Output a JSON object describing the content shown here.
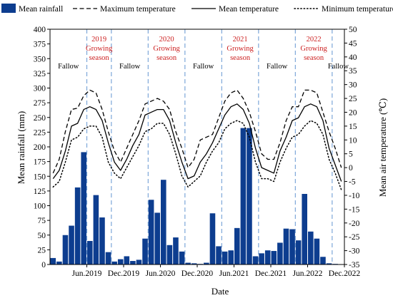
{
  "chart_data": {
    "type": "bar+line",
    "title": "",
    "xlabel": "Date",
    "ylabel_left": "Mean rainfall (mm)",
    "ylabel_right": "Mean air temperature (℃)",
    "ylim_left": [
      0,
      400
    ],
    "yticks_left": [
      0,
      25,
      50,
      75,
      100,
      125,
      150,
      175,
      200,
      225,
      250,
      275,
      300,
      325,
      350,
      375,
      400
    ],
    "ylim_right": [
      -35,
      50
    ],
    "yticks_right": [
      -35,
      -30,
      -25,
      -20,
      -15,
      -10,
      -5,
      0,
      5,
      10,
      15,
      20,
      25,
      30,
      35,
      40,
      45,
      50
    ],
    "x_tick_labels": [
      {
        "month": 6,
        "label": "Jun.2019"
      },
      {
        "month": 12,
        "label": "Dec.2019"
      },
      {
        "month": 18,
        "label": "Jun.2020"
      },
      {
        "month": 24,
        "label": "Dec.2020"
      },
      {
        "month": 30,
        "label": "Jun.2021"
      },
      {
        "month": 36,
        "label": "Dec.2021"
      },
      {
        "month": 42,
        "label": "Jun.2022"
      },
      {
        "month": 48,
        "label": "Dec.2022"
      }
    ],
    "months": [
      "2019-01",
      "2019-02",
      "2019-03",
      "2019-04",
      "2019-05",
      "2019-06",
      "2019-07",
      "2019-08",
      "2019-09",
      "2019-10",
      "2019-11",
      "2019-12",
      "2020-01",
      "2020-02",
      "2020-03",
      "2020-04",
      "2020-05",
      "2020-06",
      "2020-07",
      "2020-08",
      "2020-09",
      "2020-10",
      "2020-11",
      "2020-12",
      "2021-01",
      "2021-02",
      "2021-03",
      "2021-04",
      "2021-05",
      "2021-06",
      "2021-07",
      "2021-08",
      "2021-09",
      "2021-10",
      "2021-11",
      "2021-12",
      "2022-01",
      "2022-02",
      "2022-03",
      "2022-04",
      "2022-05",
      "2022-06",
      "2022-07",
      "2022-08",
      "2022-09",
      "2022-10",
      "2022-11",
      "2022-12"
    ],
    "legend": [
      {
        "key": "rain",
        "label": "Mean rainfall"
      },
      {
        "key": "tmax",
        "label": "Maximum temperature"
      },
      {
        "key": "tmean",
        "label": "Mean temperature"
      },
      {
        "key": "tmin",
        "label": "Minimum temperature"
      }
    ],
    "legend_position": "top",
    "series": [
      {
        "key": "rain",
        "name": "Mean rainfall",
        "axis": "left",
        "kind": "bar",
        "values": [
          11,
          5,
          50,
          66,
          131,
          191,
          40,
          118,
          80,
          21,
          5,
          9,
          14,
          6,
          8,
          44,
          110,
          88,
          144,
          33,
          46,
          22,
          3,
          2,
          1,
          3,
          87,
          31,
          22,
          24,
          62,
          232,
          232,
          14,
          19,
          24,
          23,
          37,
          61,
          60,
          41,
          120,
          56,
          44,
          13,
          2,
          1,
          0
        ]
      },
      {
        "key": "tmax",
        "name": "Maximum temperature",
        "axis": "right",
        "kind": "line",
        "dash": "dashed",
        "values": [
          -2,
          3,
          13,
          21,
          21.5,
          26,
          28,
          27,
          21,
          13,
          6,
          2,
          7,
          12,
          17,
          23,
          24,
          25,
          24,
          21,
          13,
          7,
          0,
          3,
          10,
          11,
          12,
          18,
          24,
          27,
          28,
          25,
          20,
          13,
          5,
          3,
          3,
          9,
          17,
          22,
          22,
          28,
          28,
          27,
          20,
          13,
          7,
          0
        ]
      },
      {
        "key": "tmean",
        "name": "Mean temperature",
        "axis": "right",
        "kind": "line",
        "dash": "solid",
        "values": [
          -4,
          -1,
          6,
          15,
          16,
          21,
          22,
          21,
          17,
          9,
          2,
          -1,
          3,
          8,
          12,
          19,
          20,
          21,
          21,
          17,
          9,
          2,
          -4,
          -3,
          2,
          5,
          9,
          14,
          19,
          22,
          23,
          21,
          16,
          7,
          0,
          -1,
          -2,
          6,
          11,
          17,
          18,
          22,
          23,
          22,
          17,
          7,
          1,
          -5
        ]
      },
      {
        "key": "tmin",
        "name": "Minimum temperature",
        "axis": "right",
        "kind": "line",
        "dash": "dotted",
        "values": [
          -7,
          -5,
          2,
          10,
          11,
          14,
          15,
          15,
          11,
          2,
          -2,
          -4,
          0,
          4,
          8,
          13,
          14,
          16,
          16,
          12,
          5,
          -3,
          -7,
          -5,
          -3,
          2,
          6,
          9,
          14,
          16,
          17,
          16,
          11,
          2,
          -4,
          -4,
          -5,
          2,
          7,
          11,
          12,
          15,
          17,
          16,
          12,
          3,
          -2,
          -8
        ]
      }
    ],
    "regions": [
      {
        "label": "Fallow",
        "start": 0,
        "end": 6,
        "growing": false
      },
      {
        "label": "2019 Growing season",
        "start": 6,
        "end": 10,
        "growing": true
      },
      {
        "label": "Fallow",
        "start": 10,
        "end": 16,
        "growing": false
      },
      {
        "label": "2020 Growing season",
        "start": 16,
        "end": 22,
        "growing": true
      },
      {
        "label": "Fallow",
        "start": 22,
        "end": 28,
        "growing": false
      },
      {
        "label": "2021 Growing season",
        "start": 28,
        "end": 34,
        "growing": true
      },
      {
        "label": "Fallow",
        "start": 34,
        "end": 40,
        "growing": false
      },
      {
        "label": "2022 Growing season",
        "start": 40,
        "end": 46,
        "growing": true
      },
      {
        "label": "Fallow",
        "start": 46,
        "end": 48,
        "growing": false
      }
    ],
    "region_labels": [
      {
        "region": 0,
        "lines": [
          "Fallow"
        ]
      },
      {
        "region": 1,
        "lines": [
          "2019",
          "Growing",
          "season"
        ]
      },
      {
        "region": 2,
        "lines": [
          "Fallow"
        ]
      },
      {
        "region": 3,
        "lines": [
          "2020",
          "Growing",
          "season"
        ]
      },
      {
        "region": 4,
        "lines": [
          "Fallow"
        ]
      },
      {
        "region": 5,
        "lines": [
          "2021",
          "Growing",
          "season"
        ]
      },
      {
        "region": 6,
        "lines": [
          "Fallow"
        ]
      },
      {
        "region": 7,
        "lines": [
          "2022",
          "Growing",
          "season"
        ]
      },
      {
        "region": 8,
        "lines": [
          "Fallow"
        ]
      }
    ],
    "colors": {
      "bar": "#0d3d8f",
      "line": "#000000",
      "separator": "#7da7d9",
      "growing_label": "#cc1f1f",
      "fallow_label": "#000000"
    }
  }
}
